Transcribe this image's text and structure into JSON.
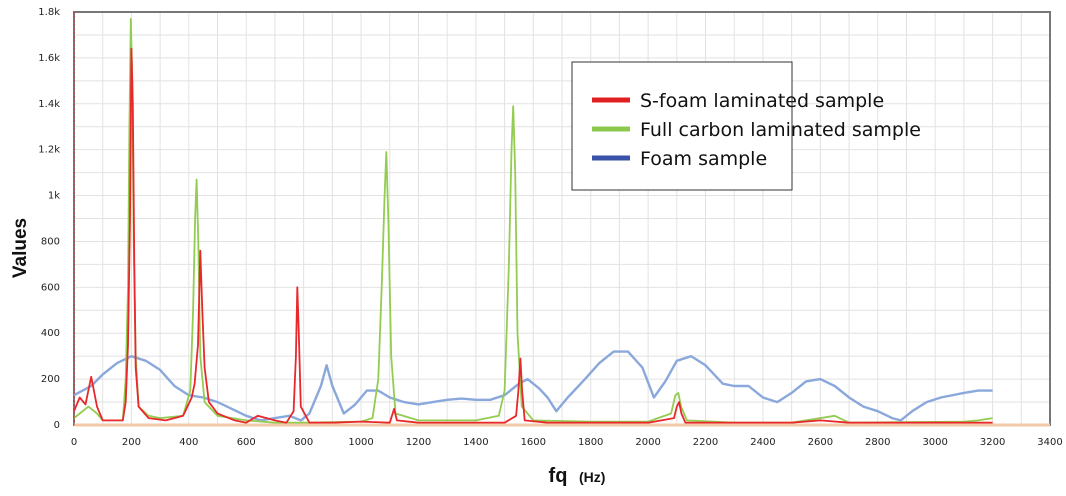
{
  "chart_data": {
    "type": "line",
    "xlabel": "fq",
    "xlabel_unit": "(Hz)",
    "ylabel": "Values",
    "xlim": [
      0,
      3400
    ],
    "ylim": [
      0,
      1800
    ],
    "x_ticks": [
      0,
      200,
      400,
      600,
      800,
      1000,
      1200,
      1400,
      1600,
      1800,
      2000,
      2200,
      2400,
      2600,
      2800,
      3000,
      3200,
      3400
    ],
    "y_ticks": [
      0,
      200,
      400,
      600,
      800,
      1000,
      1200,
      1400,
      1600,
      1800
    ],
    "y_tick_labels": [
      "0",
      "200",
      "400",
      "600",
      "800",
      "1k",
      "1.2k",
      "1.4k",
      "1.6k",
      "1.8k"
    ],
    "grid": true,
    "legend_position": "top-right",
    "series": [
      {
        "name": "S-foam laminated sample",
        "color": "#e8282a",
        "points": [
          [
            0,
            60
          ],
          [
            20,
            120
          ],
          [
            40,
            90
          ],
          [
            60,
            210
          ],
          [
            80,
            80
          ],
          [
            100,
            20
          ],
          [
            170,
            20
          ],
          [
            180,
            100
          ],
          [
            188,
            350
          ],
          [
            195,
            900
          ],
          [
            200,
            1640
          ],
          [
            205,
            1400
          ],
          [
            210,
            700
          ],
          [
            215,
            250
          ],
          [
            225,
            80
          ],
          [
            260,
            30
          ],
          [
            320,
            20
          ],
          [
            380,
            40
          ],
          [
            410,
            120
          ],
          [
            420,
            180
          ],
          [
            432,
            350
          ],
          [
            440,
            760
          ],
          [
            447,
            500
          ],
          [
            455,
            250
          ],
          [
            470,
            100
          ],
          [
            500,
            50
          ],
          [
            560,
            20
          ],
          [
            600,
            10
          ],
          [
            640,
            40
          ],
          [
            700,
            20
          ],
          [
            740,
            10
          ],
          [
            765,
            60
          ],
          [
            773,
            300
          ],
          [
            778,
            600
          ],
          [
            783,
            400
          ],
          [
            790,
            80
          ],
          [
            820,
            10
          ],
          [
            900,
            10
          ],
          [
            1000,
            15
          ],
          [
            1100,
            10
          ],
          [
            1115,
            70
          ],
          [
            1125,
            20
          ],
          [
            1200,
            10
          ],
          [
            1400,
            10
          ],
          [
            1500,
            10
          ],
          [
            1540,
            40
          ],
          [
            1548,
            150
          ],
          [
            1555,
            290
          ],
          [
            1561,
            150
          ],
          [
            1570,
            20
          ],
          [
            1650,
            10
          ],
          [
            2000,
            10
          ],
          [
            2090,
            30
          ],
          [
            2100,
            80
          ],
          [
            2108,
            100
          ],
          [
            2116,
            50
          ],
          [
            2130,
            10
          ],
          [
            2400,
            10
          ],
          [
            2500,
            10
          ],
          [
            2600,
            20
          ],
          [
            2700,
            10
          ],
          [
            3200,
            10
          ]
        ]
      },
      {
        "name": "Full carbon laminated sample",
        "color": "#92cc50",
        "points": [
          [
            0,
            30
          ],
          [
            20,
            50
          ],
          [
            50,
            80
          ],
          [
            80,
            50
          ],
          [
            100,
            20
          ],
          [
            170,
            20
          ],
          [
            180,
            200
          ],
          [
            188,
            600
          ],
          [
            193,
            1300
          ],
          [
            198,
            1770
          ],
          [
            203,
            1500
          ],
          [
            208,
            800
          ],
          [
            215,
            300
          ],
          [
            225,
            80
          ],
          [
            260,
            40
          ],
          [
            300,
            30
          ],
          [
            380,
            40
          ],
          [
            405,
            150
          ],
          [
            415,
            500
          ],
          [
            422,
            900
          ],
          [
            427,
            1070
          ],
          [
            433,
            800
          ],
          [
            440,
            300
          ],
          [
            455,
            100
          ],
          [
            500,
            40
          ],
          [
            600,
            20
          ],
          [
            700,
            10
          ],
          [
            800,
            10
          ],
          [
            1000,
            15
          ],
          [
            1040,
            30
          ],
          [
            1060,
            200
          ],
          [
            1072,
            600
          ],
          [
            1082,
            1000
          ],
          [
            1088,
            1190
          ],
          [
            1095,
            900
          ],
          [
            1105,
            300
          ],
          [
            1120,
            50
          ],
          [
            1200,
            20
          ],
          [
            1400,
            20
          ],
          [
            1480,
            40
          ],
          [
            1500,
            150
          ],
          [
            1515,
            700
          ],
          [
            1524,
            1200
          ],
          [
            1530,
            1390
          ],
          [
            1537,
            1100
          ],
          [
            1545,
            400
          ],
          [
            1560,
            80
          ],
          [
            1600,
            20
          ],
          [
            1800,
            15
          ],
          [
            2000,
            15
          ],
          [
            2080,
            50
          ],
          [
            2095,
            130
          ],
          [
            2105,
            140
          ],
          [
            2115,
            80
          ],
          [
            2135,
            20
          ],
          [
            2300,
            10
          ],
          [
            2500,
            10
          ],
          [
            2650,
            40
          ],
          [
            2700,
            10
          ],
          [
            3100,
            15
          ],
          [
            3150,
            20
          ],
          [
            3200,
            30
          ]
        ]
      },
      {
        "name": "Foam sample",
        "color": "#8aa8dc",
        "points": [
          [
            0,
            130
          ],
          [
            30,
            150
          ],
          [
            60,
            170
          ],
          [
            100,
            220
          ],
          [
            150,
            270
          ],
          [
            200,
            300
          ],
          [
            250,
            280
          ],
          [
            300,
            240
          ],
          [
            350,
            170
          ],
          [
            400,
            130
          ],
          [
            450,
            120
          ],
          [
            500,
            100
          ],
          [
            550,
            70
          ],
          [
            600,
            40
          ],
          [
            650,
            20
          ],
          [
            700,
            30
          ],
          [
            750,
            40
          ],
          [
            790,
            20
          ],
          [
            820,
            50
          ],
          [
            860,
            170
          ],
          [
            880,
            260
          ],
          [
            900,
            170
          ],
          [
            940,
            50
          ],
          [
            980,
            90
          ],
          [
            1020,
            150
          ],
          [
            1060,
            150
          ],
          [
            1100,
            120
          ],
          [
            1150,
            100
          ],
          [
            1200,
            90
          ],
          [
            1250,
            100
          ],
          [
            1300,
            110
          ],
          [
            1350,
            115
          ],
          [
            1400,
            110
          ],
          [
            1450,
            110
          ],
          [
            1500,
            130
          ],
          [
            1550,
            180
          ],
          [
            1580,
            200
          ],
          [
            1620,
            160
          ],
          [
            1650,
            120
          ],
          [
            1680,
            60
          ],
          [
            1720,
            120
          ],
          [
            1780,
            200
          ],
          [
            1830,
            270
          ],
          [
            1880,
            320
          ],
          [
            1930,
            320
          ],
          [
            1980,
            250
          ],
          [
            2020,
            120
          ],
          [
            2060,
            190
          ],
          [
            2100,
            280
          ],
          [
            2150,
            300
          ],
          [
            2200,
            260
          ],
          [
            2260,
            180
          ],
          [
            2300,
            170
          ],
          [
            2350,
            170
          ],
          [
            2400,
            120
          ],
          [
            2450,
            100
          ],
          [
            2500,
            140
          ],
          [
            2550,
            190
          ],
          [
            2600,
            200
          ],
          [
            2650,
            170
          ],
          [
            2700,
            120
          ],
          [
            2750,
            80
          ],
          [
            2800,
            60
          ],
          [
            2850,
            30
          ],
          [
            2880,
            20
          ],
          [
            2920,
            60
          ],
          [
            2970,
            100
          ],
          [
            3020,
            120
          ],
          [
            3100,
            140
          ],
          [
            3150,
            150
          ],
          [
            3200,
            150
          ]
        ]
      }
    ]
  }
}
